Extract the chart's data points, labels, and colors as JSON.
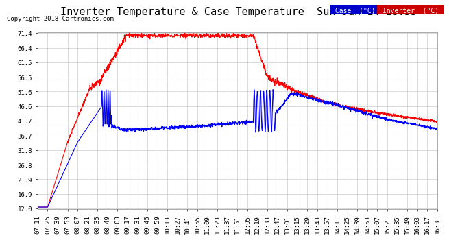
{
  "title": "Inverter Temperature & Case Temperature  Sun Jan 14 16:35",
  "copyright": "Copyright 2018 Cartronics.com",
  "background_color": "#ffffff",
  "plot_bg_color": "#ffffff",
  "grid_color": "#cccccc",
  "yticks": [
    12.0,
    16.9,
    21.9,
    26.8,
    31.8,
    36.7,
    41.7,
    46.6,
    51.6,
    56.5,
    61.5,
    66.4,
    71.4
  ],
  "xtick_labels": [
    "07:11",
    "07:25",
    "07:39",
    "07:53",
    "08:07",
    "08:21",
    "08:35",
    "08:49",
    "09:03",
    "09:17",
    "09:31",
    "09:45",
    "09:59",
    "10:13",
    "10:27",
    "10:41",
    "10:55",
    "11:09",
    "11:23",
    "11:37",
    "11:51",
    "12:05",
    "12:19",
    "12:33",
    "12:47",
    "13:01",
    "13:15",
    "13:29",
    "13:43",
    "13:57",
    "14:11",
    "14:25",
    "14:39",
    "14:53",
    "15:07",
    "15:21",
    "15:35",
    "15:49",
    "16:03",
    "16:17",
    "16:31"
  ],
  "case_color": "#0000ff",
  "inverter_color": "#ff0000",
  "legend_case_bg": "#0000cc",
  "legend_inverter_bg": "#cc0000",
  "legend_text_color": "#ffffff",
  "title_fontsize": 11,
  "tick_fontsize": 6.5,
  "copyright_fontsize": 6.5,
  "ymin": 12.0,
  "ymax": 71.4
}
